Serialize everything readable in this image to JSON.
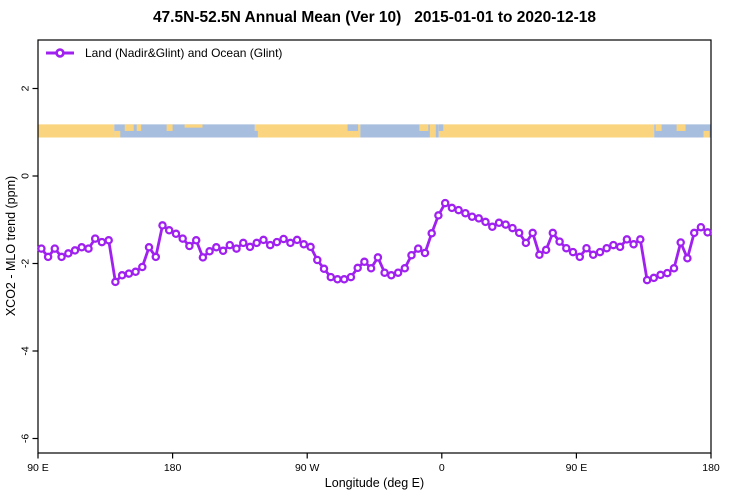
{
  "title": "47.5N-52.5N Annual Mean (Ver 10)   2015-01-01 to 2020-12-18",
  "legend": {
    "label": "Land (Nadir&Glint) and Ocean (Glint)"
  },
  "chart_data": {
    "type": "line",
    "title": "47.5N-52.5N Annual Mean (Ver 10)   2015-01-01 to 2020-12-18",
    "xlabel": "Longitude (deg E)",
    "ylabel": "XCO2 - MLO trend (ppm)",
    "axis_note": "x axis spans 450 degrees of longitude starting at 90E and wrapping eastward to 180",
    "xlim_deg_along": [
      0,
      450
    ],
    "ylim": [
      -6.3,
      3.1
    ],
    "y_ticks": [
      2,
      0,
      -2,
      -4,
      -6
    ],
    "x_ticks": [
      {
        "deg": 0,
        "label": "90 E"
      },
      {
        "deg": 90,
        "label": "180"
      },
      {
        "deg": 180,
        "label": "90 W"
      },
      {
        "deg": 270,
        "label": "0"
      },
      {
        "deg": 360,
        "label": "90 E"
      },
      {
        "deg": 450,
        "label": "180"
      }
    ],
    "grid": false,
    "legend_position": "top-left",
    "series": [
      {
        "name": "Land (Nadir&Glint) and Ocean (Glint)",
        "color": "#A020F0",
        "marker": "open-circle",
        "points_deg_val": [
          [
            2.25,
            -1.66
          ],
          [
            6.75,
            -1.85
          ],
          [
            11.25,
            -1.66
          ],
          [
            15.75,
            -1.85
          ],
          [
            20.25,
            -1.77
          ],
          [
            24.75,
            -1.7
          ],
          [
            29.25,
            -1.63
          ],
          [
            33.75,
            -1.66
          ],
          [
            38.25,
            -1.43
          ],
          [
            42.75,
            -1.51
          ],
          [
            47.25,
            -1.47
          ],
          [
            51.75,
            -2.42
          ],
          [
            56.25,
            -2.27
          ],
          [
            60.75,
            -2.23
          ],
          [
            65.25,
            -2.19
          ],
          [
            69.75,
            -2.08
          ],
          [
            74.25,
            -1.63
          ],
          [
            78.75,
            -1.85
          ],
          [
            83.25,
            -1.13
          ],
          [
            87.75,
            -1.24
          ],
          [
            92.25,
            -1.32
          ],
          [
            96.75,
            -1.43
          ],
          [
            101.25,
            -1.6
          ],
          [
            105.75,
            -1.47
          ],
          [
            110.25,
            -1.86
          ],
          [
            114.75,
            -1.72
          ],
          [
            119.25,
            -1.63
          ],
          [
            123.75,
            -1.71
          ],
          [
            128.25,
            -1.58
          ],
          [
            132.75,
            -1.66
          ],
          [
            137.25,
            -1.53
          ],
          [
            141.75,
            -1.62
          ],
          [
            146.25,
            -1.53
          ],
          [
            150.75,
            -1.46
          ],
          [
            155.25,
            -1.58
          ],
          [
            159.75,
            -1.51
          ],
          [
            164.25,
            -1.44
          ],
          [
            168.75,
            -1.53
          ],
          [
            173.25,
            -1.46
          ],
          [
            177.75,
            -1.56
          ],
          [
            182.25,
            -1.62
          ],
          [
            186.75,
            -1.92
          ],
          [
            191.25,
            -2.12
          ],
          [
            195.75,
            -2.31
          ],
          [
            200.25,
            -2.36
          ],
          [
            204.75,
            -2.36
          ],
          [
            209.25,
            -2.31
          ],
          [
            213.75,
            -2.1
          ],
          [
            218.25,
            -1.96
          ],
          [
            222.75,
            -2.11
          ],
          [
            227.25,
            -1.86
          ],
          [
            231.75,
            -2.21
          ],
          [
            236.25,
            -2.27
          ],
          [
            240.75,
            -2.21
          ],
          [
            245.25,
            -2.11
          ],
          [
            249.75,
            -1.81
          ],
          [
            254.25,
            -1.66
          ],
          [
            258.75,
            -1.76
          ],
          [
            263.25,
            -1.31
          ],
          [
            267.75,
            -0.9
          ],
          [
            272.25,
            -0.62
          ],
          [
            276.75,
            -0.73
          ],
          [
            281.25,
            -0.78
          ],
          [
            285.75,
            -0.85
          ],
          [
            290.25,
            -0.93
          ],
          [
            294.75,
            -0.97
          ],
          [
            299.25,
            -1.05
          ],
          [
            303.75,
            -1.16
          ],
          [
            308.25,
            -1.07
          ],
          [
            312.75,
            -1.11
          ],
          [
            317.25,
            -1.19
          ],
          [
            321.75,
            -1.3
          ],
          [
            326.25,
            -1.53
          ],
          [
            330.75,
            -1.3
          ],
          [
            335.25,
            -1.8
          ],
          [
            339.75,
            -1.69
          ],
          [
            344.25,
            -1.3
          ],
          [
            348.75,
            -1.5
          ],
          [
            353.25,
            -1.65
          ],
          [
            357.75,
            -1.74
          ],
          [
            362.25,
            -1.85
          ],
          [
            366.75,
            -1.65
          ],
          [
            371.25,
            -1.8
          ],
          [
            375.75,
            -1.74
          ],
          [
            380.25,
            -1.65
          ],
          [
            384.75,
            -1.58
          ],
          [
            389.25,
            -1.62
          ],
          [
            393.75,
            -1.45
          ],
          [
            398.25,
            -1.56
          ],
          [
            402.75,
            -1.45
          ],
          [
            407.25,
            -2.38
          ],
          [
            411.75,
            -2.33
          ],
          [
            416.25,
            -2.26
          ],
          [
            420.75,
            -2.22
          ],
          [
            425.25,
            -2.11
          ],
          [
            429.75,
            -1.52
          ],
          [
            434.25,
            -1.88
          ],
          [
            438.75,
            -1.3
          ],
          [
            443.25,
            -1.17
          ],
          [
            447.75,
            -1.29
          ]
        ]
      }
    ],
    "surface_band": {
      "description": "land/ocean indicator strip",
      "value_range": [
        0.88,
        1.18
      ],
      "land_color": "#FAD47F",
      "ocean_color": "#A8BEDE",
      "segments": [
        {
          "from": 0,
          "to": 51,
          "type": "land"
        },
        {
          "from": 51,
          "to": 145,
          "type": "ocean"
        },
        {
          "from": 145,
          "to": 215.5,
          "type": "land"
        },
        {
          "from": 215.5,
          "to": 268,
          "type": "ocean"
        },
        {
          "from": 268,
          "to": 412,
          "type": "land"
        },
        {
          "from": 412,
          "to": 450,
          "type": "ocean"
        }
      ],
      "details": [
        {
          "from": 51,
          "to": 55,
          "type": "land",
          "half": "bottom"
        },
        {
          "from": 58,
          "to": 64,
          "type": "land",
          "half": "top"
        },
        {
          "from": 66,
          "to": 69,
          "type": "land",
          "half": "top"
        },
        {
          "from": 86,
          "to": 90,
          "type": "land",
          "half": "top"
        },
        {
          "from": 98,
          "to": 110,
          "type": "land",
          "half": "top_sliver"
        },
        {
          "from": 143,
          "to": 147,
          "type": "ocean",
          "half": "bottom"
        },
        {
          "from": 207,
          "to": 214,
          "type": "ocean",
          "half": "top"
        },
        {
          "from": 255,
          "to": 261,
          "type": "land",
          "half": "top"
        },
        {
          "from": 262,
          "to": 266,
          "type": "land",
          "half": "full"
        },
        {
          "from": 268,
          "to": 271,
          "type": "ocean",
          "half": "top"
        },
        {
          "from": 413,
          "to": 417,
          "type": "land",
          "half": "top"
        },
        {
          "from": 427,
          "to": 433,
          "type": "land",
          "half": "top"
        },
        {
          "from": 445,
          "to": 449,
          "type": "land",
          "half": "bottom"
        }
      ]
    }
  }
}
